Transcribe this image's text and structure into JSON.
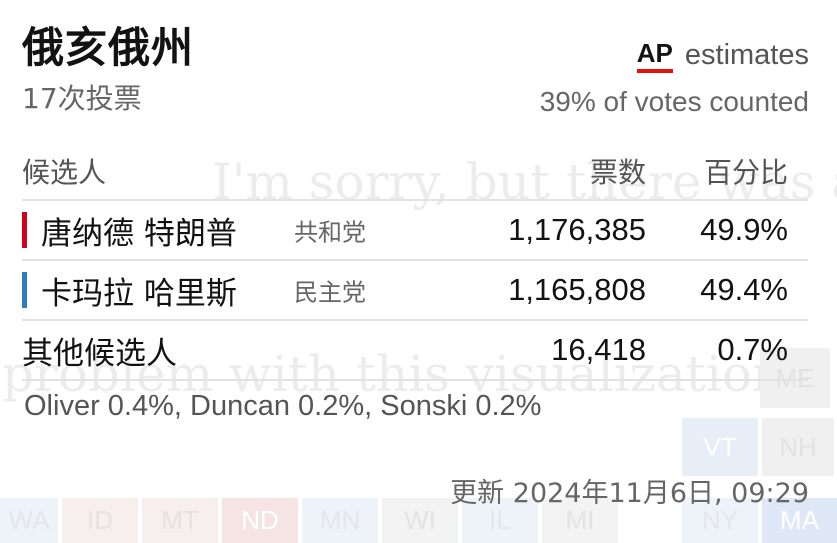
{
  "background": {
    "error_line1": "I'm sorry, but there was a",
    "error_line2": "problem with this visualization.",
    "tiles": [
      {
        "label": "ME",
        "color": "#f0f0f0"
      },
      {
        "label": "VT",
        "color": "#e7eef8"
      },
      {
        "label": "NH",
        "color": "#f0f0f0"
      },
      {
        "label": "WA",
        "color": "#eef2f9"
      },
      {
        "label": "ID",
        "color": "#f7eeee"
      },
      {
        "label": "MT",
        "color": "#f7eeee"
      },
      {
        "label": "ND",
        "color": "#f6e4e4"
      },
      {
        "label": "MN",
        "color": "#eef2f9"
      },
      {
        "label": "WI",
        "color": "#f3f3f3"
      },
      {
        "label": "IL",
        "color": "#eef2f9"
      },
      {
        "label": "MI",
        "color": "#f3f3f3"
      },
      {
        "label": "NY",
        "color": "#eef2f9"
      },
      {
        "label": "MA",
        "color": "#dfe8f6"
      }
    ]
  },
  "header": {
    "title": "俄亥俄州",
    "subtitle": "17次投票",
    "ap_logo": "AP",
    "ap_estimates": "estimates",
    "votes_counted": "39% of votes counted"
  },
  "table": {
    "col_candidate": "候选人",
    "col_votes": "票数",
    "col_percent": "百分比",
    "rows": [
      {
        "name": "唐纳德 特朗普",
        "party": "共和党",
        "party_color": "#d0021b",
        "votes": "1,176,385",
        "percent": "49.9%"
      },
      {
        "name": "卡玛拉 哈里斯",
        "party": "民主党",
        "party_color": "#2a7fc1",
        "votes": "1,165,808",
        "percent": "49.4%"
      },
      {
        "name": "其他候选人",
        "party": "",
        "party_color": "",
        "votes": "16,418",
        "percent": "0.7%"
      }
    ],
    "others_detail": "Oliver 0.4%, Duncan 0.2%, Sonski 0.2%"
  },
  "footer": {
    "updated": "更新 2024年11月6日, 09:29"
  }
}
